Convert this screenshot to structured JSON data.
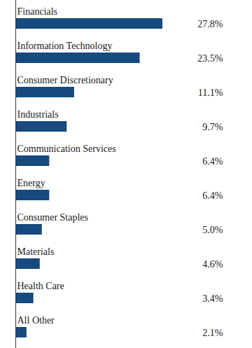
{
  "chart_data": {
    "type": "bar",
    "orientation": "horizontal",
    "categories": [
      "Financials",
      "Information Technology",
      "Consumer Discretionary",
      "Industrials",
      "Communication Services",
      "Energy",
      "Consumer Staples",
      "Materials",
      "Health Care",
      "All Other"
    ],
    "values": [
      27.8,
      23.5,
      11.1,
      9.7,
      6.4,
      6.4,
      5.0,
      4.6,
      3.4,
      2.1
    ],
    "value_labels": [
      "27.8%",
      "23.5%",
      "11.1%",
      "9.7%",
      "6.4%",
      "6.4%",
      "5.0%",
      "4.6%",
      "3.4%",
      "2.1%"
    ],
    "color": "#174a7e",
    "data_labels": true,
    "tick_labels": false,
    "grid": false
  }
}
